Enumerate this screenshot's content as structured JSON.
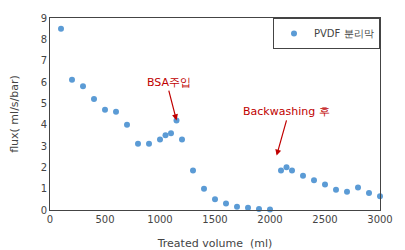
{
  "chart_data": {
    "type": "scatter",
    "x": [
      100,
      200,
      300,
      400,
      500,
      600,
      700,
      800,
      900,
      1000,
      1050,
      1100,
      1150,
      1200,
      1300,
      1400,
      1500,
      1600,
      1700,
      1800,
      1900,
      2000,
      2100,
      2150,
      2200,
      2300,
      2400,
      2500,
      2600,
      2700,
      2800,
      2900,
      3000
    ],
    "series": [
      {
        "name": "PVDF 분리막",
        "color": "#5B9BD5",
        "marker": "circle",
        "values": [
          8.5,
          6.1,
          5.8,
          5.2,
          4.7,
          4.6,
          4.0,
          3.1,
          3.1,
          3.3,
          3.5,
          3.6,
          4.2,
          3.3,
          1.85,
          1.0,
          0.5,
          0.3,
          0.15,
          0.1,
          0.05,
          0.02,
          1.85,
          2.0,
          1.85,
          1.6,
          1.4,
          1.2,
          0.95,
          0.85,
          1.05,
          0.8,
          0.65
        ]
      }
    ],
    "xlabel": "Treated volume  (ml)",
    "ylabel": "flux( ml/s/bar)",
    "xlim": [
      0,
      3000
    ],
    "ylim": [
      0,
      9
    ],
    "xticks": [
      0,
      500,
      1000,
      1500,
      2000,
      2500,
      3000
    ],
    "yticks": [
      0,
      1,
      2,
      3,
      4,
      5,
      6,
      7,
      8,
      9
    ],
    "grid": false,
    "legend": "upper right",
    "annotations": [
      {
        "text": "BSA주입",
        "x": 1150,
        "y": 4.2,
        "text_x": 1080,
        "text_y": 5.6,
        "color": "#C00000"
      },
      {
        "text": "Backwashing 후",
        "x": 2060,
        "y": 2.55,
        "text_x": 2150,
        "text_y": 4.2,
        "color": "#C00000"
      }
    ]
  }
}
